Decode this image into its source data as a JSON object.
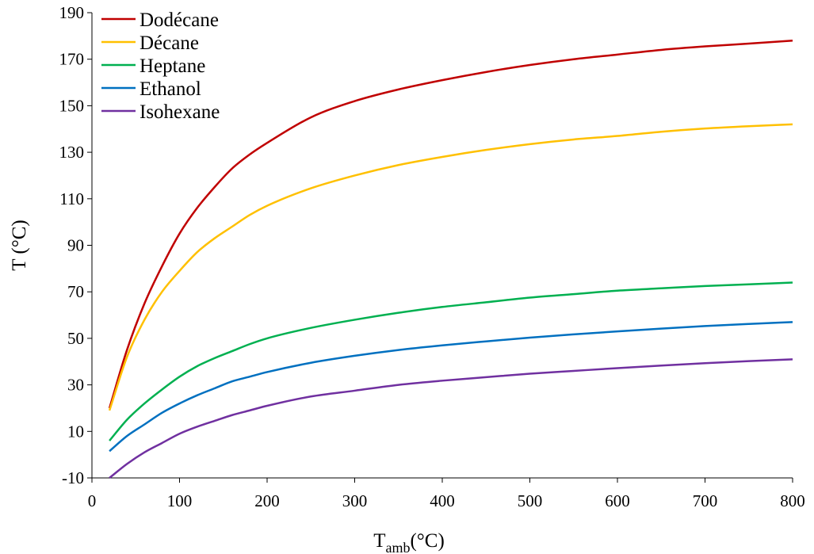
{
  "chart_data": {
    "type": "line",
    "title": "",
    "xlabel": {
      "main": "T",
      "sub": "amb",
      "unit": "(°C)"
    },
    "ylabel": "T (°C)",
    "xlim": [
      0,
      800
    ],
    "ylim": [
      -10,
      190
    ],
    "x_ticks": [
      0,
      100,
      200,
      300,
      400,
      500,
      600,
      700,
      800
    ],
    "y_ticks": [
      -10,
      10,
      30,
      50,
      70,
      90,
      110,
      130,
      150,
      170,
      190
    ],
    "grid": false,
    "legend_position": "top-left",
    "x": [
      20,
      40,
      60,
      80,
      100,
      120,
      140,
      160,
      180,
      200,
      250,
      300,
      350,
      400,
      450,
      500,
      550,
      600,
      650,
      700,
      750,
      800
    ],
    "series": [
      {
        "name": "Dodécane",
        "color": "#c00000",
        "values": [
          20,
          45,
          65,
          81,
          95,
          106,
          115,
          123,
          129,
          134,
          145,
          152,
          157,
          161,
          164.5,
          167.5,
          170,
          172,
          174,
          175.5,
          176.7,
          178
        ]
      },
      {
        "name": "Décane",
        "color": "#ffc000",
        "values": [
          19,
          42,
          58,
          70,
          79,
          87,
          93,
          98,
          103,
          107,
          114.5,
          120,
          124.5,
          128,
          131,
          133.5,
          135.5,
          137,
          138.8,
          140.2,
          141.2,
          142
        ]
      },
      {
        "name": "Heptane",
        "color": "#00b050",
        "values": [
          6,
          15,
          22,
          28,
          33.5,
          38,
          41.5,
          44.5,
          47.5,
          50,
          54.5,
          58,
          61,
          63.5,
          65.5,
          67.5,
          69,
          70.5,
          71.5,
          72.5,
          73.2,
          74
        ]
      },
      {
        "name": "Ethanol",
        "color": "#0070c0",
        "values": [
          1.5,
          8,
          13,
          18,
          22,
          25.5,
          28.5,
          31.5,
          33.5,
          35.5,
          39.5,
          42.5,
          45,
          47,
          48.7,
          50.3,
          51.7,
          53,
          54.2,
          55.3,
          56.2,
          57
        ]
      },
      {
        "name": "Isohexane",
        "color": "#7030a0",
        "values": [
          -10,
          -4,
          1,
          5,
          9,
          12,
          14.5,
          17,
          19,
          21,
          25,
          27.5,
          30,
          31.8,
          33.3,
          34.8,
          36,
          37.2,
          38.3,
          39.3,
          40.2,
          41
        ]
      }
    ]
  }
}
